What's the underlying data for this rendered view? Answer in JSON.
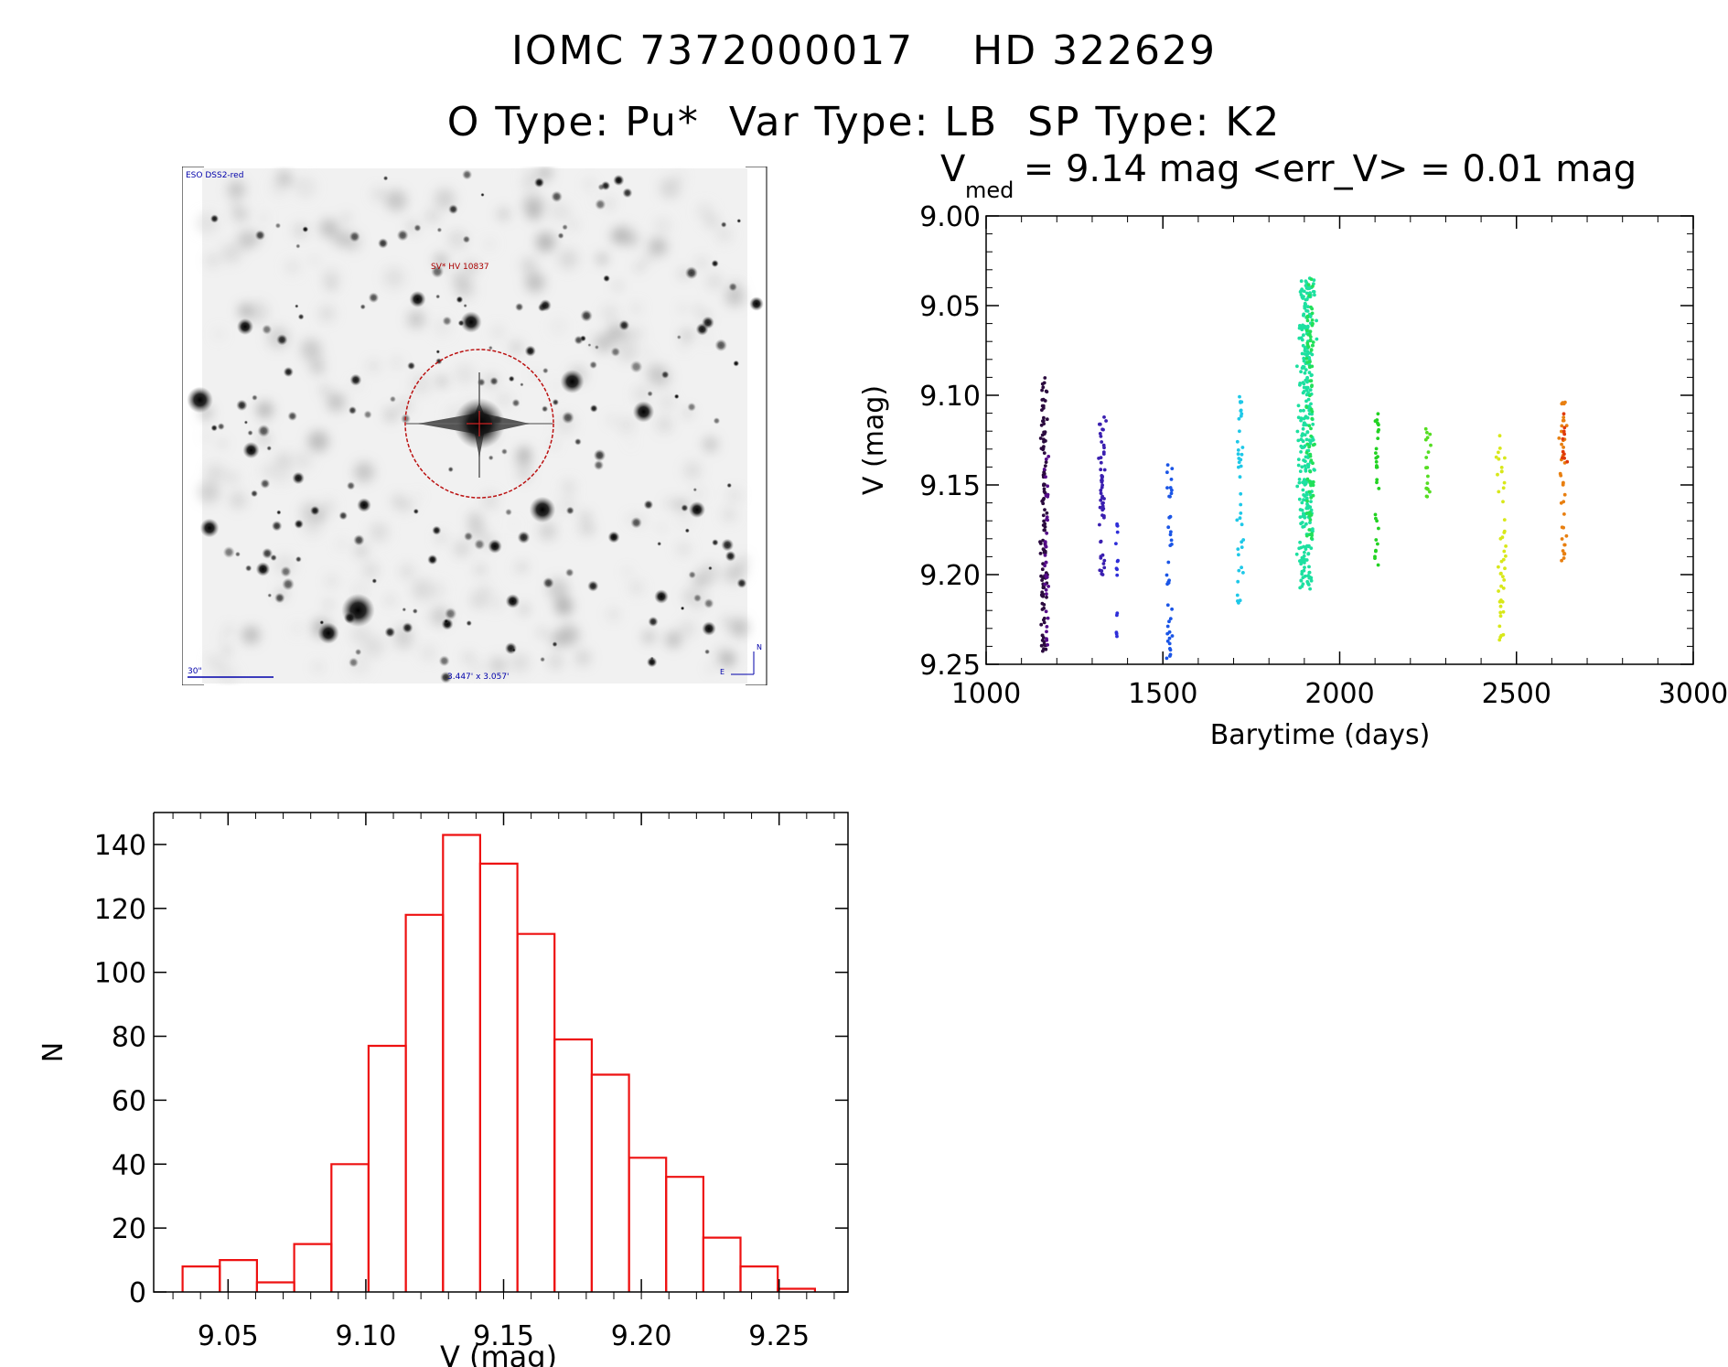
{
  "header": {
    "title_line1": "IOMC 7372000017    HD 322629",
    "title_line2": "O Type: Pu*  Var Type: LB  SP Type: K2"
  },
  "image_panel": {
    "survey_label": "ESO DSS2-red",
    "object_label": "SV* HV 10837",
    "scale_label": "30\"",
    "fov_label": "3.447' x 3.057'",
    "compass_north": "N",
    "compass_east": "E"
  },
  "colors": {
    "histogram": "#ee1111",
    "axes": "#000000",
    "marker_circle": "#bb1111",
    "overlay_text_red": "#aa0000",
    "overlay_text_blue": "#0000aa"
  },
  "chart_data": [
    {
      "type": "scatter",
      "title_main": "V",
      "title_sub": "med",
      "title_rest": " = 9.14 mag <err_V> = 0.01 mag",
      "xlabel": "Barytime (days)",
      "ylabel": "V (mag)",
      "xlim": [
        1000,
        3000
      ],
      "ylim": [
        9.25,
        9.0
      ],
      "y_inverted": true,
      "xticks": [
        "1000",
        "1500",
        "2000",
        "2500",
        "3000"
      ],
      "yticks": [
        "9.00",
        "9.05",
        "9.10",
        "9.15",
        "9.20",
        "9.25"
      ],
      "clusters": [
        {
          "x": [
            1150,
            1175
          ],
          "y": [
            9.089,
            9.243
          ],
          "n": 110,
          "color": "#2b0b3f"
        },
        {
          "x": [
            1160,
            1180
          ],
          "y": [
            9.13,
            9.24
          ],
          "n": 35,
          "color": "#550a8a"
        },
        {
          "x": [
            1315,
            1340
          ],
          "y": [
            9.111,
            9.2
          ],
          "n": 55,
          "color": "#3a1fb0"
        },
        {
          "x": [
            1365,
            1375
          ],
          "y": [
            9.17,
            9.238
          ],
          "n": 15,
          "color": "#2e2ed8"
        },
        {
          "x": [
            1505,
            1535
          ],
          "y": [
            9.137,
            9.248
          ],
          "n": 40,
          "color": "#1a55e6"
        },
        {
          "x": [
            1705,
            1730
          ],
          "y": [
            9.097,
            9.22
          ],
          "n": 40,
          "color": "#1ec8e8"
        },
        {
          "x": [
            1875,
            1935
          ],
          "y": [
            9.034,
            9.208
          ],
          "n": 300,
          "color": "#1de0a0"
        },
        {
          "x": [
            1900,
            1935
          ],
          "y": [
            9.034,
            9.18
          ],
          "n": 80,
          "color": "#22e05a"
        },
        {
          "x": [
            2095,
            2115
          ],
          "y": [
            9.11,
            9.195
          ],
          "n": 30,
          "color": "#22d222"
        },
        {
          "x": [
            2240,
            2260
          ],
          "y": [
            9.118,
            9.158
          ],
          "n": 18,
          "color": "#55dd22"
        },
        {
          "x": [
            2440,
            2475
          ],
          "y": [
            9.122,
            9.244
          ],
          "n": 45,
          "color": "#d8e81a"
        },
        {
          "x": [
            2620,
            2645
          ],
          "y": [
            9.102,
            9.196
          ],
          "n": 40,
          "color": "#e87f10"
        },
        {
          "x": [
            2625,
            2645
          ],
          "y": [
            9.102,
            9.14
          ],
          "n": 10,
          "color": "#e03a0a"
        }
      ]
    },
    {
      "type": "bar",
      "xlabel": "V (mag)",
      "ylabel": "N",
      "xlim": [
        9.023,
        9.275
      ],
      "ylim": [
        0,
        150
      ],
      "xticks": [
        "9.05",
        "9.10",
        "9.15",
        "9.20",
        "9.25"
      ],
      "yticks": [
        "0",
        "20",
        "40",
        "60",
        "80",
        "100",
        "120",
        "140"
      ],
      "bin_start": 9.0335,
      "bin_width": 0.0135,
      "values": [
        8,
        10,
        3,
        15,
        40,
        77,
        118,
        143,
        134,
        112,
        79,
        68,
        42,
        36,
        17,
        8,
        1
      ]
    }
  ]
}
